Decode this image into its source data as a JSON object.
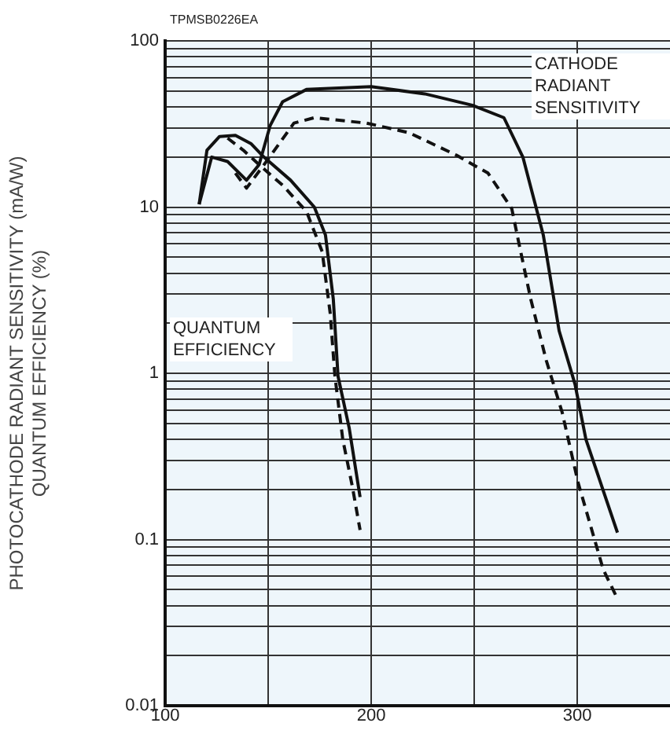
{
  "chart_data": {
    "type": "line",
    "ylabel": "PHOTOCATHODE RADIANT SENSITIVITY (mA/W)\nQUANTUM EFFICIENCY (%)",
    "log": "y",
    "grid": true,
    "legend": false,
    "marker": "none",
    "xlim": [
      100,
      345
    ],
    "xticks": [
      100,
      {
        "value": 150,
        "label": null
      },
      200,
      {
        "value": 250,
        "label": null
      },
      300
    ],
    "ylim": [
      0.01,
      100
    ],
    "yticks": [
      0.01,
      {
        "value": 0.02,
        "label": null
      },
      {
        "value": 0.03,
        "label": null
      },
      {
        "value": 0.04,
        "label": null
      },
      {
        "value": 0.05,
        "label": null
      },
      {
        "value": 0.06,
        "label": null
      },
      {
        "value": 0.07,
        "label": null
      },
      {
        "value": 0.08,
        "label": null
      },
      {
        "value": 0.09,
        "label": null
      },
      0.1,
      {
        "value": 0.2,
        "label": null
      },
      {
        "value": 0.3,
        "label": null
      },
      {
        "value": 0.4,
        "label": null
      },
      {
        "value": 0.5,
        "label": null
      },
      {
        "value": 0.6,
        "label": null
      },
      {
        "value": 0.7,
        "label": null
      },
      {
        "value": 0.8,
        "label": null
      },
      {
        "value": 0.9,
        "label": null
      },
      1,
      {
        "value": 2,
        "label": null
      },
      {
        "value": 3,
        "label": null
      },
      {
        "value": 4,
        "label": null
      },
      {
        "value": 5,
        "label": null
      },
      {
        "value": 6,
        "label": null
      },
      {
        "value": 7,
        "label": null
      },
      {
        "value": 8,
        "label": null
      },
      {
        "value": 9,
        "label": null
      },
      10,
      {
        "value": 20,
        "label": null
      },
      {
        "value": 30,
        "label": null
      },
      {
        "value": 40,
        "label": null
      },
      {
        "value": 50,
        "label": null
      },
      {
        "value": 60,
        "label": null
      },
      {
        "value": 70,
        "label": null
      },
      {
        "value": 80,
        "label": null
      },
      {
        "value": 90,
        "label": null
      },
      100
    ],
    "annotations": [
      "TPMSB0226EA",
      "CATHODE RADIANT SENSITIVITY",
      "QUANTUM EFFICIENCY"
    ],
    "series": [
      {
        "color": "#111111",
        "line_style": "solid",
        "x": [
          116.5,
          120.3,
          126.4,
          134.1,
          141.8,
          147.9,
          160.9,
          172.4,
          177.8,
          181.6,
          183.9,
          189.3,
          194.6
        ],
        "values": [
          10.4,
          22,
          26.6,
          27,
          24,
          20,
          14.5,
          10,
          6.8,
          2.8,
          0.96,
          0.47,
          0.18
        ]
      },
      {
        "color": "#111111",
        "line_style": "dashed",
        "x": [
          130.3,
          137.9,
          145.6,
          157.1,
          168.6,
          176.2,
          180.1,
          182.4,
          186.2,
          190.8,
          194.6
        ],
        "values": [
          26,
          22,
          18,
          13.5,
          9.4,
          5.4,
          2.3,
          0.96,
          0.4,
          0.21,
          0.114
        ]
      },
      {
        "color": "#111111",
        "line_style": "solid",
        "x": [
          116.5,
          122.6,
          130.3,
          139.5,
          145.6,
          151,
          157,
          168.6,
          200,
          226,
          249,
          264.4,
          273.6,
          283.5,
          291.2,
          298.9,
          304.2,
          319.5
        ],
        "values": [
          10.4,
          20,
          18.8,
          14.5,
          18,
          31,
          43,
          51,
          53,
          48,
          41,
          34.5,
          20,
          6.8,
          1.8,
          0.86,
          0.4,
          0.11
        ]
      },
      {
        "color": "#111111",
        "line_style": "dashed",
        "x": [
          134.1,
          139.5,
          149.4,
          162.5,
          172.4,
          197.7,
          218.4,
          241.4,
          256.7,
          268.2,
          272,
          277.4,
          285,
          292.7,
          300.4,
          312.6,
          319.5
        ],
        "values": [
          16,
          13,
          19,
          32,
          34.5,
          32,
          28,
          20.5,
          16,
          9.8,
          5.8,
          2.8,
          1.19,
          0.58,
          0.22,
          0.066,
          0.044
        ]
      }
    ]
  }
}
